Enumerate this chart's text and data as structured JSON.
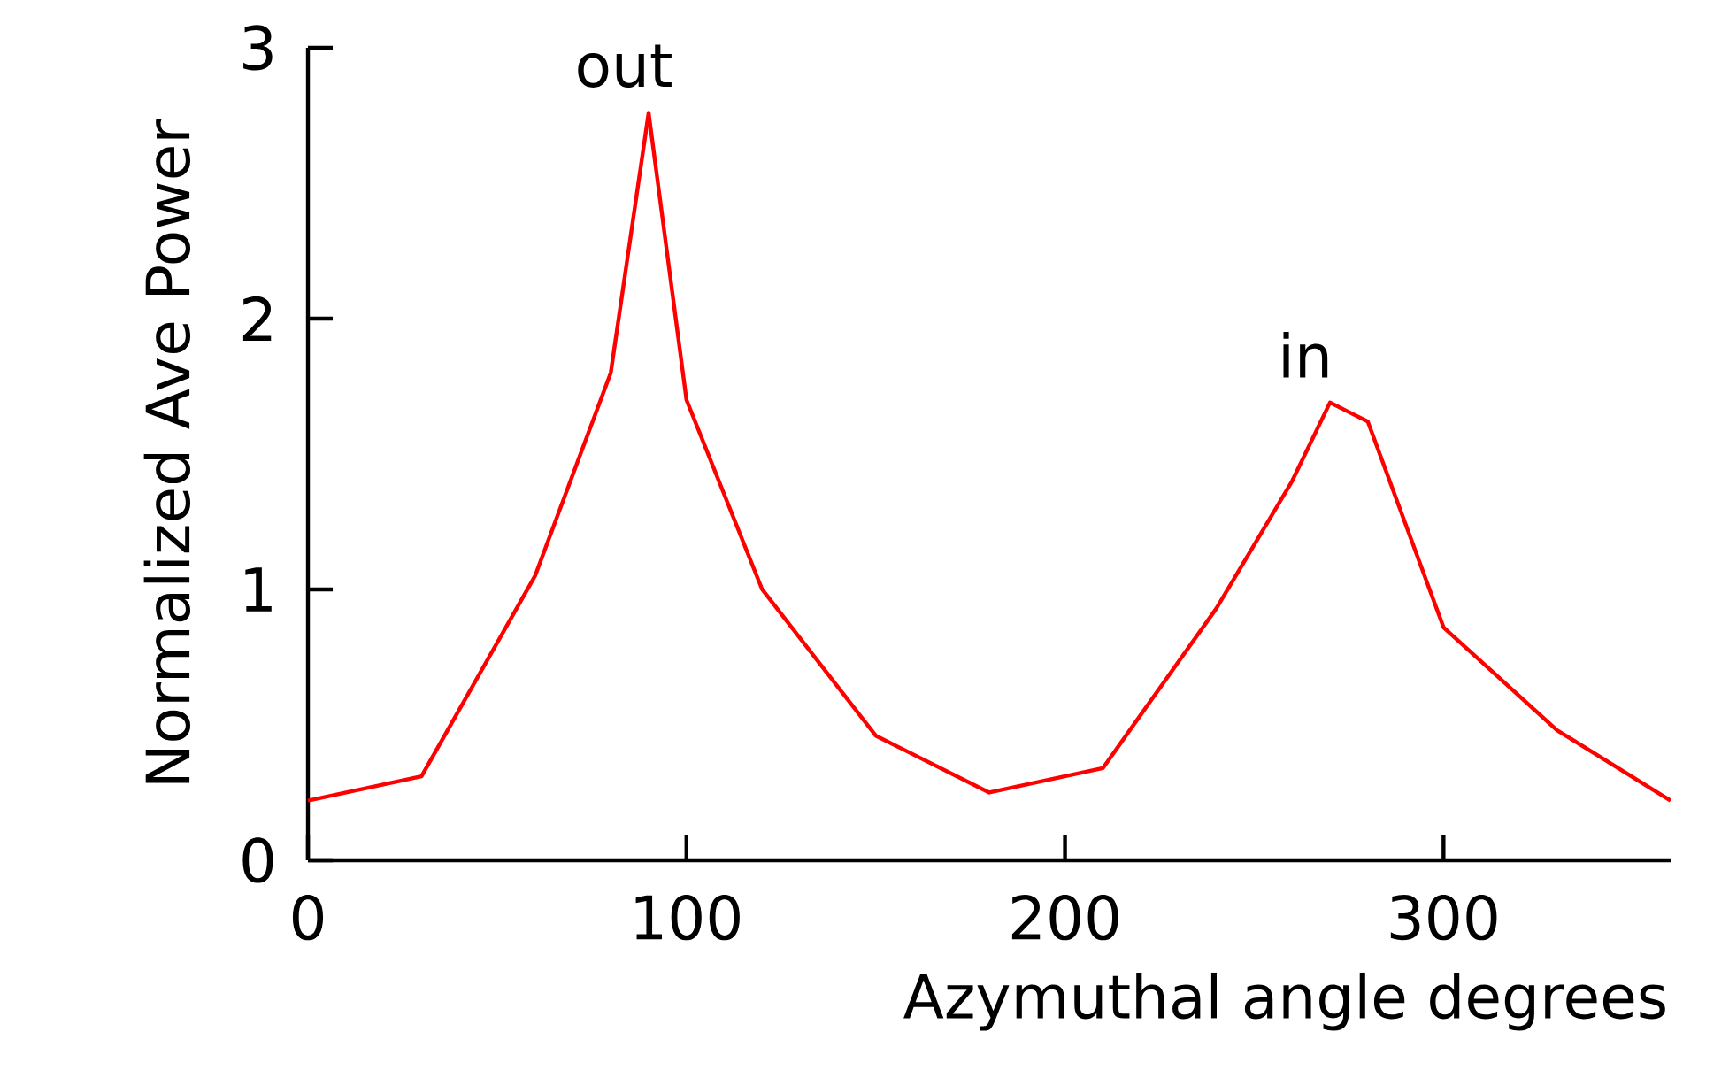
{
  "chart_data": {
    "type": "line",
    "xlabel": "Azymuthal angle degrees",
    "ylabel": "Normalized Ave Power",
    "x": [
      0,
      30,
      60,
      80,
      90,
      100,
      120,
      150,
      180,
      210,
      240,
      260,
      270,
      280,
      300,
      330,
      360
    ],
    "series": [
      {
        "color": "#ff0000",
        "values": [
          0.22,
          0.31,
          1.05,
          1.8,
          2.76,
          1.7,
          1.0,
          0.46,
          0.25,
          0.34,
          0.93,
          1.4,
          1.69,
          1.62,
          0.86,
          0.48,
          0.22
        ]
      }
    ],
    "xlim": [
      0,
      360
    ],
    "ylim": [
      0,
      3
    ],
    "xticks": [
      0,
      100,
      200,
      300
    ],
    "yticks": [
      0,
      1,
      2,
      3
    ],
    "annotations": [
      {
        "text": "out",
        "x": 90,
        "y": 2.76
      },
      {
        "text": "in",
        "x": 270,
        "y": 1.69
      }
    ]
  }
}
